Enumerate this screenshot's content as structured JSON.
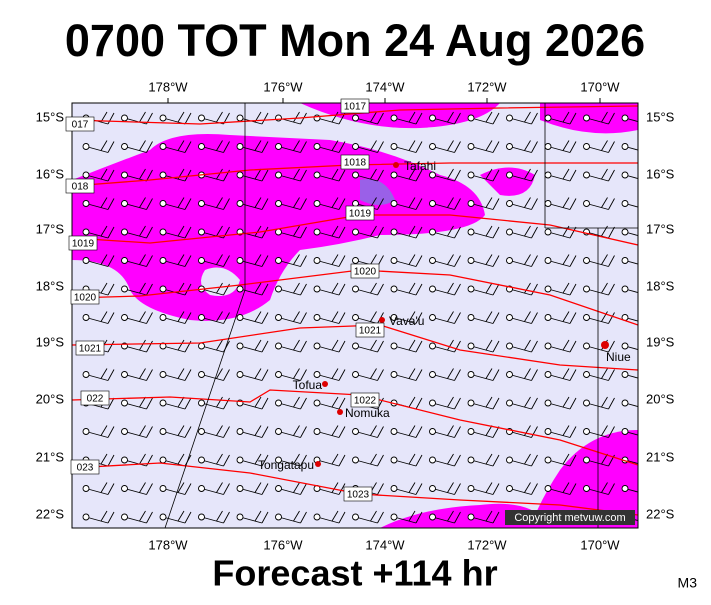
{
  "title": "0700 TOT Mon 24 Aug 2026",
  "footer": "Forecast +114 hr",
  "model": "M3",
  "copyright": "Copyright metvuw.com",
  "lon_labels": [
    "178°W",
    "176°W",
    "174°W",
    "172°W",
    "170°W"
  ],
  "lat_labels": [
    "15°S",
    "16°S",
    "17°S",
    "18°S",
    "19°S",
    "20°S",
    "21°S",
    "22°S"
  ],
  "isobar_labels": [
    "1017",
    "017",
    "1018",
    "018",
    "1019",
    "1019",
    "1020",
    "1020",
    "1021",
    "1021",
    "1022",
    "022",
    "023",
    "1023"
  ],
  "places": [
    "Tafahi",
    "Vava'u",
    "Niue",
    "Tofua",
    "Nomuka",
    "Tongatapu"
  ]
}
